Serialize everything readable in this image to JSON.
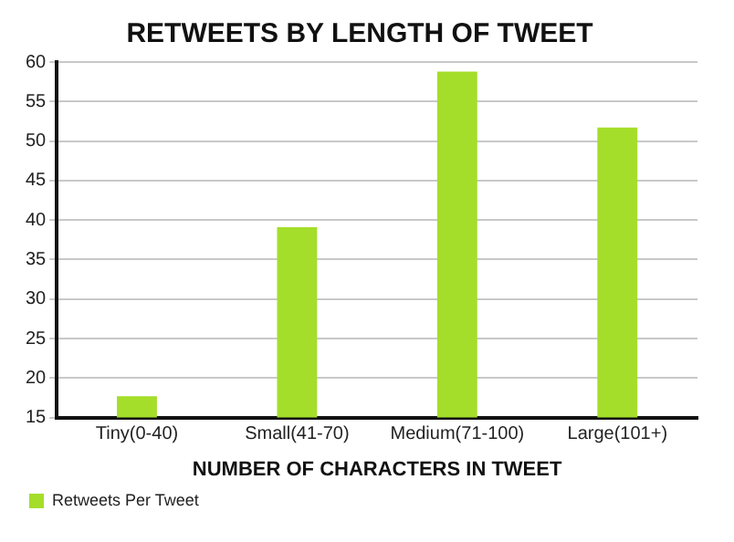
{
  "chart_data": {
    "type": "bar",
    "title": "RETWEETS BY LENGTH OF TWEET",
    "xlabel": "NUMBER OF CHARACTERS IN TWEET",
    "categories": [
      "Tiny(0-40)",
      "Small(41-70)",
      "Medium(71-100)",
      "Large(101+)"
    ],
    "series": [
      {
        "name": "Retweets Per Tweet",
        "color": "#a4de2a",
        "values": [
          17.7,
          39.1,
          58.8,
          51.7
        ]
      }
    ],
    "ylim": [
      15,
      60
    ],
    "yticks": [
      15,
      20,
      25,
      30,
      35,
      40,
      45,
      50,
      55,
      60
    ],
    "grid": "y",
    "legend": "bottom left"
  }
}
